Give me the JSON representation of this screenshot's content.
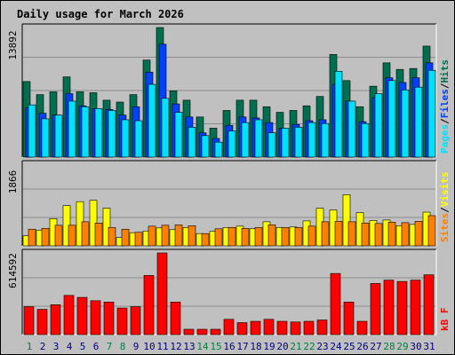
{
  "title": "Daily usage for March 2026",
  "colors": {
    "background": "#c0c0c0",
    "panel": "#c0c0c0",
    "grid": "#8c8c8c",
    "hits": "#006f4f",
    "files": "#0040ff",
    "pages": "#00e0ff",
    "visits": "#ffff00",
    "sites": "#ff8000",
    "kbytes": "#ff0000",
    "title": "#0000c0",
    "weekday": "#000080",
    "weekend": "#008040"
  },
  "legend": {
    "top": {
      "pages": "Pages",
      "files": "Files",
      "hits": "Hits",
      "sep": "/"
    },
    "middle": {
      "sites": "Sites",
      "visits": "Visits",
      "sep": "/"
    },
    "bottom": {
      "kbytes": "kB F"
    }
  },
  "chart_data": [
    {
      "type": "bar",
      "title": "Daily usage for March 2026",
      "panel": "hits-files-pages",
      "y_max_label": "13892",
      "ylim": [
        0,
        13892
      ],
      "x": [
        1,
        2,
        3,
        4,
        5,
        6,
        7,
        8,
        9,
        10,
        11,
        12,
        13,
        14,
        15,
        16,
        17,
        18,
        19,
        20,
        21,
        22,
        23,
        24,
        25,
        26,
        27,
        28,
        29,
        30,
        31
      ],
      "weekend_days": [
        1,
        7,
        8,
        14,
        15,
        21,
        22,
        28,
        29
      ],
      "series": [
        {
          "name": "Hits",
          "values": [
            8100,
            6700,
            7000,
            8600,
            7000,
            6900,
            6100,
            5900,
            6700,
            10400,
            13892,
            7100,
            6100,
            4300,
            3100,
            5000,
            6100,
            6100,
            5400,
            4800,
            5000,
            5500,
            6500,
            11000,
            8200,
            5400,
            7600,
            10100,
            9400,
            9500,
            11900
          ]
        },
        {
          "name": "Files",
          "values": [
            5300,
            4700,
            4500,
            6800,
            5500,
            5200,
            5100,
            4500,
            5400,
            9100,
            12100,
            5700,
            4300,
            2600,
            2000,
            3400,
            4300,
            4200,
            3700,
            3100,
            3500,
            3900,
            4000,
            7800,
            6000,
            3800,
            6400,
            8500,
            8000,
            8500,
            10100
          ]
        },
        {
          "name": "Pages",
          "values": [
            5600,
            4100,
            4500,
            6000,
            5400,
            5200,
            5000,
            4000,
            3900,
            7800,
            6300,
            4800,
            3200,
            2300,
            1600,
            2800,
            3700,
            4000,
            2600,
            3100,
            3200,
            3700,
            3600,
            9200,
            6000,
            3600,
            6800,
            8200,
            7200,
            7500,
            9300
          ]
        }
      ]
    },
    {
      "type": "bar",
      "panel": "visits-sites",
      "y_max_label": "1866",
      "ylim": [
        0,
        1866
      ],
      "x": [
        1,
        2,
        3,
        4,
        5,
        6,
        7,
        8,
        9,
        10,
        11,
        12,
        13,
        14,
        15,
        16,
        17,
        18,
        19,
        20,
        21,
        22,
        23,
        24,
        25,
        26,
        27,
        28,
        29,
        30,
        31
      ],
      "series": [
        {
          "name": "Visits",
          "values": [
            230,
            360,
            620,
            920,
            1010,
            1040,
            860,
            190,
            300,
            340,
            410,
            370,
            420,
            280,
            330,
            420,
            450,
            390,
            550,
            420,
            430,
            570,
            860,
            820,
            1170,
            760,
            580,
            590,
            460,
            490,
            770
          ]
        },
        {
          "name": "Sites",
          "values": [
            380,
            400,
            470,
            470,
            550,
            520,
            420,
            380,
            310,
            450,
            470,
            480,
            460,
            280,
            390,
            420,
            400,
            420,
            480,
            420,
            420,
            450,
            550,
            560,
            550,
            520,
            510,
            540,
            530,
            560,
            690
          ]
        }
      ]
    },
    {
      "type": "bar",
      "panel": "kbytes",
      "y_max_label": "614592",
      "ylim": [
        0,
        614592
      ],
      "x": [
        1,
        2,
        3,
        4,
        5,
        6,
        7,
        8,
        9,
        10,
        11,
        12,
        13,
        14,
        15,
        16,
        17,
        18,
        19,
        20,
        21,
        22,
        23,
        24,
        25,
        26,
        27,
        28,
        29,
        30,
        31
      ],
      "series": [
        {
          "name": "kB F",
          "values": [
            210000,
            190000,
            225000,
            295000,
            280000,
            255000,
            245000,
            200000,
            210000,
            445000,
            614592,
            245000,
            40000,
            40000,
            40000,
            115000,
            90000,
            100000,
            115000,
            100000,
            95000,
            100000,
            110000,
            460000,
            245000,
            100000,
            385000,
            410000,
            400000,
            410000,
            450000
          ]
        }
      ]
    }
  ]
}
